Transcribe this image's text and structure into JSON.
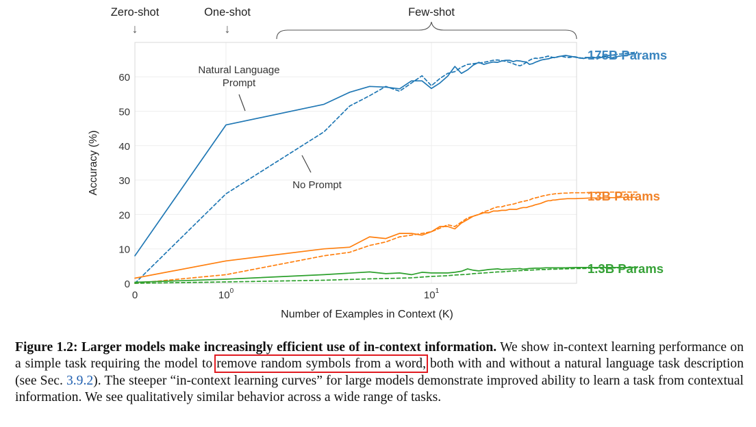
{
  "annotations": {
    "zero_shot": "Zero-shot",
    "one_shot": "One-shot",
    "few_shot": "Few-shot",
    "arrow": "↓"
  },
  "chart_data": {
    "type": "line",
    "xlabel": "Number of Examples in Context  (K)",
    "ylabel": "Accuracy (%)",
    "x_scale": "symlog",
    "xlim": [
      0,
      100
    ],
    "ylim": [
      0,
      70
    ],
    "y_ticks": [
      0,
      10,
      20,
      30,
      40,
      50,
      60
    ],
    "x_tick_labels": [
      {
        "value": 0,
        "label": "0"
      },
      {
        "value": 1,
        "base": "10",
        "exp": "0"
      },
      {
        "value": 10,
        "base": "10",
        "exp": "1"
      }
    ],
    "grid": true,
    "text_annotations": [
      "Natural Language",
      "Prompt",
      "No Prompt"
    ],
    "series_labels": {
      "175B": "175B Params",
      "13B": "13B Params",
      "1.3B": "1.3B Params"
    },
    "colors": {
      "175B": "#1f77b4",
      "13B": "#ff7f0e",
      "1.3B": "#2ca02c"
    },
    "series": [
      {
        "model": "175B",
        "style": "solid",
        "x": [
          0,
          1,
          3,
          4,
          5,
          6,
          7,
          8,
          9,
          10,
          11,
          12,
          13,
          14,
          15,
          16,
          17,
          18,
          19,
          20,
          21,
          22,
          23,
          24,
          25,
          26,
          27,
          28,
          29,
          30,
          31,
          32,
          33,
          34,
          35,
          36,
          37,
          38,
          39,
          40,
          41,
          42,
          43,
          44,
          45,
          46,
          47,
          48,
          49,
          50,
          51,
          52,
          53,
          54,
          55,
          56,
          57,
          58,
          59,
          60,
          61,
          62,
          63,
          64,
          65,
          66,
          67,
          68,
          69,
          70,
          71,
          72,
          73,
          74,
          75,
          76,
          77,
          78,
          79,
          80,
          81,
          82,
          83,
          84,
          85,
          86,
          87,
          88,
          89,
          90,
          91,
          92,
          93,
          94,
          95,
          96,
          97,
          98,
          99,
          100
        ],
        "y": [
          8,
          46,
          52,
          55.5,
          57.2,
          57,
          56.5,
          58.8,
          58.8,
          56.6,
          58.2,
          60.2,
          63,
          61,
          62,
          63.4,
          64.2,
          63.6,
          64,
          64.3,
          64.2,
          64.6,
          64.8,
          64.8,
          64.4,
          64.7,
          64.6,
          64.4,
          64.3,
          63.6,
          63.8,
          64.2,
          64.5,
          64.8,
          65,
          65.1,
          65.2,
          65.4,
          65.6,
          65.6,
          65.8,
          65.9,
          66,
          66.1,
          66.2,
          66.1,
          66,
          65.9,
          65.8,
          65.8,
          65.7,
          65.5,
          65.4,
          65.4,
          65.3,
          65.4,
          65.5,
          65.6,
          65.6,
          65.7,
          65.7,
          65.6,
          65.5,
          65.5,
          65.4,
          65.5,
          65.6,
          65.7,
          65.7,
          65.8,
          65.8,
          65.7,
          65.6,
          65.6,
          65.5,
          65.5,
          65.6,
          65.7,
          65.8,
          65.8,
          65.9,
          66,
          66,
          66.1,
          66.1,
          66.2,
          66.2,
          66.3,
          66.3,
          66.4,
          66.4,
          66.4,
          66.5,
          66.5,
          66.5,
          66.6,
          66.6,
          66.6,
          66.7,
          67
        ]
      },
      {
        "model": "175B",
        "style": "dashed",
        "x": [
          0,
          1,
          3,
          4,
          5,
          6,
          7,
          8,
          9,
          10,
          11,
          12,
          13,
          14,
          15,
          16,
          17,
          18,
          19,
          20,
          21,
          22,
          23,
          24,
          25,
          26,
          27,
          28,
          29,
          30,
          31,
          32,
          33,
          34,
          35,
          36,
          37,
          38,
          39,
          40,
          41,
          42,
          43,
          44,
          45,
          46,
          47,
          48,
          49,
          50,
          51,
          52,
          53,
          54,
          55,
          56,
          57,
          58,
          59,
          60,
          61,
          62,
          63,
          64,
          65,
          66,
          67,
          68,
          69,
          70,
          71,
          72,
          73,
          74,
          75,
          76,
          77,
          78,
          79,
          80,
          81,
          82,
          83,
          84,
          85,
          86,
          87,
          88,
          89,
          90,
          91,
          92,
          93,
          94,
          95,
          96,
          97,
          98,
          99,
          100
        ],
        "y": [
          0,
          26,
          44,
          51.5,
          54.5,
          57.2,
          55.8,
          58.2,
          60.3,
          57.4,
          59.5,
          61,
          61.5,
          62.8,
          63.6,
          63.8,
          64,
          64.2,
          64.5,
          64.8,
          64.9,
          64.7,
          64.5,
          64.2,
          63.8,
          63.4,
          63.2,
          63.6,
          64.2,
          64.8,
          65.2,
          65.4,
          65.3,
          65.5,
          65.6,
          65.8,
          66,
          65.8,
          65.6,
          65.5,
          65.7,
          65.9,
          66,
          65.8,
          65.7,
          65.6,
          65.6,
          65.7,
          65.8,
          65.7,
          65.6,
          65.5,
          65.5,
          65.4,
          65.5,
          65.6,
          65.6,
          65.5,
          65.5,
          65.4,
          65.5,
          65.6,
          65.7,
          65.7,
          65.8,
          65.8,
          65.9,
          65.9,
          66,
          66,
          66.1,
          66.1,
          66.2,
          66.2,
          66.3,
          66.3,
          66.4,
          66.4,
          66.5,
          66.5,
          66.5,
          66.6,
          66.6,
          66.6,
          66.7,
          66.7,
          66.7,
          66.8,
          66.8,
          66.8,
          66.9,
          66.9,
          66.9,
          67,
          67,
          67,
          67.1,
          67.1,
          67.1,
          67.2
        ]
      },
      {
        "model": "13B",
        "style": "solid",
        "x": [
          0,
          1,
          3,
          4,
          5,
          6,
          7,
          8,
          9,
          10,
          11,
          12,
          13,
          14,
          15,
          16,
          17,
          18,
          19,
          20,
          21,
          22,
          23,
          24,
          25,
          26,
          27,
          28,
          29,
          30,
          31,
          32,
          33,
          34,
          35,
          36,
          37,
          38,
          39,
          40,
          42,
          44,
          46,
          48,
          50,
          55,
          60,
          65,
          70,
          75,
          80,
          85,
          90,
          95,
          100
        ],
        "y": [
          1.5,
          6.5,
          10,
          10.5,
          13.5,
          13,
          14.5,
          14.5,
          14,
          15,
          16.5,
          16.5,
          15.8,
          17.5,
          18.5,
          19.5,
          20,
          20.5,
          20.5,
          21,
          21,
          21.2,
          21.2,
          21.5,
          21.5,
          21.5,
          21.8,
          22,
          22,
          22.3,
          22.5,
          22.8,
          23,
          23.2,
          23.5,
          23.8,
          24,
          24,
          24.2,
          24.2,
          24.4,
          24.5,
          24.6,
          24.6,
          24.6,
          24.7,
          24.8,
          24.8,
          24.8,
          24.9,
          24.9,
          25,
          25,
          25,
          25
        ]
      },
      {
        "model": "13B",
        "style": "dashed",
        "x": [
          0,
          1,
          3,
          4,
          5,
          6,
          7,
          8,
          9,
          10,
          11,
          12,
          13,
          14,
          15,
          16,
          17,
          18,
          19,
          20,
          21,
          22,
          23,
          24,
          25,
          26,
          27,
          28,
          29,
          30,
          31,
          32,
          33,
          34,
          35,
          36,
          37,
          38,
          39,
          40,
          42,
          44,
          46,
          48,
          50,
          55,
          60,
          65,
          70,
          75,
          80,
          85,
          90,
          95,
          100
        ],
        "y": [
          0,
          2.5,
          8,
          9,
          11,
          12,
          13.5,
          14,
          14.5,
          15,
          16,
          17,
          16.5,
          17.8,
          19,
          19.5,
          20,
          20.8,
          21.2,
          21.8,
          22.2,
          22.2,
          22.6,
          22.8,
          23,
          23.3,
          23.6,
          23.8,
          24,
          24.2,
          24.6,
          24.8,
          25,
          25.2,
          25.4,
          25.5,
          25.7,
          25.8,
          25.9,
          26,
          26.1,
          26.2,
          26.2,
          26.3,
          26.3,
          26.3,
          26.4,
          26.4,
          26.4,
          26.5,
          26.5,
          26.5,
          26.5,
          26.5,
          26.5
        ]
      },
      {
        "model": "1.3B",
        "style": "solid",
        "x": [
          0,
          1,
          3,
          5,
          6,
          7,
          8,
          9,
          10,
          11,
          12,
          13,
          14,
          15,
          16,
          17,
          18,
          19,
          20,
          21,
          22,
          23,
          24,
          25,
          26,
          27,
          28,
          29,
          30,
          32,
          34,
          36,
          38,
          40,
          45,
          50,
          55,
          60,
          70,
          80,
          90,
          100
        ],
        "y": [
          0.3,
          1.2,
          2.5,
          3.3,
          2.8,
          3,
          2.5,
          3.2,
          3,
          3,
          3,
          3.2,
          3.5,
          4.2,
          3.8,
          3.6,
          3.8,
          4,
          4.1,
          4.2,
          4,
          4.1,
          4.1,
          4.2,
          4.2,
          4.3,
          4.1,
          4.2,
          4.3,
          4.4,
          4.4,
          4.5,
          4.5,
          4.5,
          4.5,
          4.6,
          4.6,
          4.6,
          4.6,
          4.6,
          4.6,
          4.7
        ]
      },
      {
        "model": "1.3B",
        "style": "dashed",
        "x": [
          0,
          1,
          3,
          5,
          6,
          7,
          8,
          9,
          10,
          11,
          12,
          13,
          14,
          15,
          16,
          17,
          18,
          19,
          20,
          21,
          22,
          23,
          24,
          25,
          26,
          27,
          28,
          29,
          30,
          32,
          34,
          36,
          38,
          40,
          45,
          50,
          55,
          60,
          70,
          80,
          90,
          100
        ],
        "y": [
          0,
          0.4,
          0.9,
          1.3,
          1.4,
          1.5,
          1.6,
          1.8,
          2,
          2.1,
          2.2,
          2.4,
          2.5,
          2.6,
          2.8,
          2.9,
          3,
          3.1,
          3.2,
          3.3,
          3.3,
          3.4,
          3.5,
          3.6,
          3.6,
          3.7,
          3.7,
          3.8,
          3.8,
          3.9,
          4,
          4,
          4.1,
          4.1,
          4.2,
          4.3,
          4.3,
          4.4,
          4.4,
          4.5,
          4.5,
          4.5
        ]
      }
    ]
  },
  "caption": {
    "label": "Figure 1.2:",
    "title": "Larger models make increasingly efficient use of in-context information.",
    "part1": "We show in-context learning performance on a simple task requiring the model to",
    "highlight": "remove random symbols from a word,",
    "part2": "both with and without a natural language task description (see Sec.",
    "ref": "3.9.2",
    "part3": "). The steeper “in-context learning curves” for large models demonstrate improved ability to learn a task from contextual information. We see qualitatively similar behavior across a wide range of tasks."
  }
}
